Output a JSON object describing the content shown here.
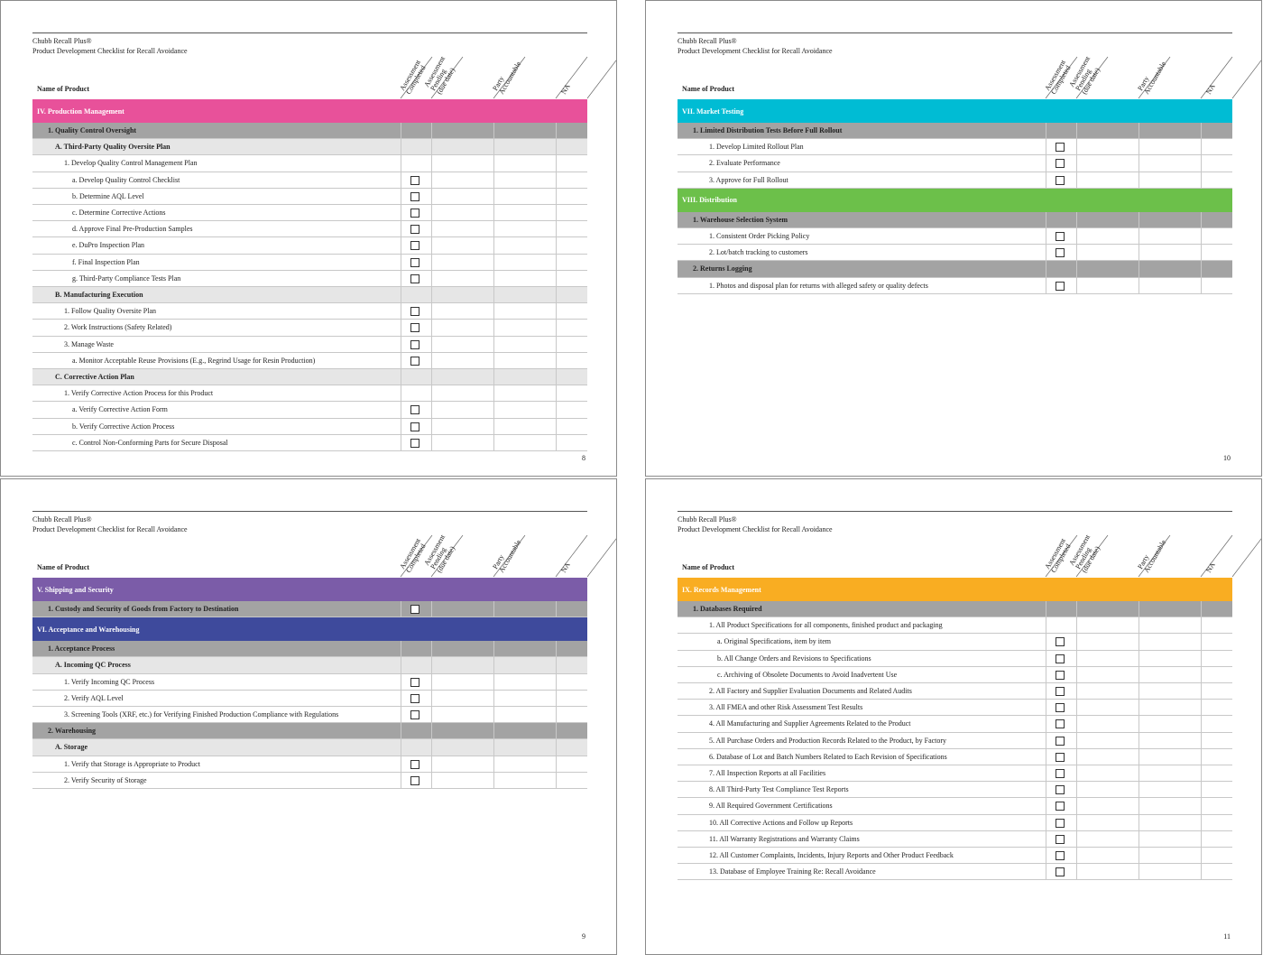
{
  "pages": [
    {
      "header_title": "Chubb Recall Plus®",
      "header_subtitle": "Product Development Checklist for Recall Avoidance",
      "name_label": "Name of Product",
      "columns": [
        [
          "Assessment",
          "Completed"
        ],
        [
          "Assessment",
          "Pending",
          "(due date)"
        ],
        [
          "Party",
          "Accountable"
        ],
        [
          "NA"
        ]
      ],
      "page_number": "8",
      "rows": [
        {
          "level": "section",
          "color": "#e8519a",
          "text": "IV.  Production Management"
        },
        {
          "level": "group",
          "text": "1. Quality Control Oversight"
        },
        {
          "level": "subgroup",
          "text": "A. Third-Party Quality Oversite Plan"
        },
        {
          "level": "item",
          "text": "1. Develop Quality Control Management Plan"
        },
        {
          "level": "subitem",
          "text": "a. Develop Quality Control Checklist",
          "checkbox": true
        },
        {
          "level": "subitem",
          "text": "b. Determine AQL Level",
          "checkbox": true
        },
        {
          "level": "subitem",
          "text": "c. Determine Corrective Actions",
          "checkbox": true
        },
        {
          "level": "subitem",
          "text": "d. Approve Final Pre-Production Samples",
          "checkbox": true
        },
        {
          "level": "subitem",
          "text": "e. DuPro Inspection Plan",
          "checkbox": true
        },
        {
          "level": "subitem",
          "text": "f. Final Inspection Plan",
          "checkbox": true
        },
        {
          "level": "subitem",
          "text": "g. Third-Party Compliance Tests Plan",
          "checkbox": true
        },
        {
          "level": "subgroup",
          "text": "B. Manufacturing Execution"
        },
        {
          "level": "item",
          "text": "1. Follow Quality Oversite Plan",
          "checkbox": true
        },
        {
          "level": "item",
          "text": "2. Work Instructions (Safety Related)",
          "checkbox": true
        },
        {
          "level": "item",
          "text": "3. Manage Waste",
          "checkbox": true
        },
        {
          "level": "subitem",
          "text": "a. Monitor Acceptable Reuse Provisions (E.g., Regrind Usage for Resin Production)",
          "checkbox": true
        },
        {
          "level": "subgroup",
          "text": "C. Corrective Action Plan"
        },
        {
          "level": "item",
          "text": "1. Verify Corrective Action Process for this Product"
        },
        {
          "level": "subitem",
          "text": "a. Verify Corrective Action Form",
          "checkbox": true
        },
        {
          "level": "subitem",
          "text": "b. Verify Corrective Action Process",
          "checkbox": true
        },
        {
          "level": "subitem",
          "text": "c. Control Non-Conforming Parts for Secure Disposal",
          "checkbox": true
        }
      ]
    },
    {
      "header_title": "Chubb Recall Plus®",
      "header_subtitle": "Product Development Checklist for Recall Avoidance",
      "name_label": "Name of Product",
      "columns": [
        [
          "Assessment",
          "Completed"
        ],
        [
          "Assessment",
          "Pending",
          "(due date)"
        ],
        [
          "Party",
          "Accountable"
        ],
        [
          "NA"
        ]
      ],
      "page_number": "10",
      "rows": [
        {
          "level": "section",
          "color": "#00bcd4",
          "text": "VII.  Market Testing"
        },
        {
          "level": "group",
          "text": "1. Limited Distribution Tests Before Full Rollout"
        },
        {
          "level": "item",
          "text": "1. Develop Limited Rollout Plan",
          "checkbox": true
        },
        {
          "level": "item",
          "text": "2. Evaluate Performance",
          "checkbox": true
        },
        {
          "level": "item",
          "text": "3. Approve for Full Rollout",
          "checkbox": true
        },
        {
          "level": "section",
          "color": "#6cc04a",
          "text": "VIII. Distribution"
        },
        {
          "level": "group",
          "text": "1. Warehouse Selection System"
        },
        {
          "level": "item",
          "text": "1. Consistent Order Picking Policy",
          "checkbox": true
        },
        {
          "level": "item",
          "text": "2. Lot/batch tracking to customers",
          "checkbox": true
        },
        {
          "level": "group",
          "text": "2. Returns Logging"
        },
        {
          "level": "item",
          "text": "1. Photos and disposal plan for returns with alleged safety or quality defects",
          "checkbox": true
        }
      ]
    },
    {
      "header_title": "Chubb Recall Plus®",
      "header_subtitle": "Product Development Checklist for Recall Avoidance",
      "name_label": "Name of Product",
      "columns": [
        [
          "Assessment",
          "Completed"
        ],
        [
          "Assessment",
          "Pending",
          "(due date)"
        ],
        [
          "Party",
          "Accountable"
        ],
        [
          "NA"
        ]
      ],
      "page_number": "9",
      "rows": [
        {
          "level": "section",
          "color": "#7b5ca8",
          "text": "V.  Shipping and Security"
        },
        {
          "level": "group",
          "text": "1. Custody and Security of Goods from Factory to Destination",
          "checkbox": true
        },
        {
          "level": "section",
          "color": "#3e4a9c",
          "text": "VI.  Acceptance and Warehousing"
        },
        {
          "level": "group",
          "text": "1. Acceptance Process"
        },
        {
          "level": "subgroup",
          "text": "A. Incoming QC Process"
        },
        {
          "level": "item",
          "text": "1. Verify Incoming QC Process",
          "checkbox": true
        },
        {
          "level": "item",
          "text": "2. Verify AQL Level",
          "checkbox": true
        },
        {
          "level": "item",
          "text": "3. Screening Tools (XRF, etc.) for Verifying Finished Production Compliance with Regulations",
          "checkbox": true
        },
        {
          "level": "group",
          "text": "2. Warehousing"
        },
        {
          "level": "subgroup",
          "text": "A. Storage"
        },
        {
          "level": "item",
          "text": "1. Verify that Storage is Appropriate to Product",
          "checkbox": true
        },
        {
          "level": "item",
          "text": "2. Verify Security of Storage",
          "checkbox": true
        }
      ]
    },
    {
      "header_title": "Chubb Recall Plus®",
      "header_subtitle": "Product Development Checklist for Recall Avoidance",
      "name_label": "Name of Product",
      "columns": [
        [
          "Assessment",
          "Completed"
        ],
        [
          "Assessment",
          "Pending",
          "(due date)"
        ],
        [
          "Party",
          "Accountable"
        ],
        [
          "NA"
        ]
      ],
      "page_number": "11",
      "rows": [
        {
          "level": "section",
          "color": "#f9ad22",
          "text": "IX.  Records Management"
        },
        {
          "level": "group",
          "text": "1. Databases Required"
        },
        {
          "level": "item",
          "text": "1. All Product Specifications for all components, finished product and packaging"
        },
        {
          "level": "subitem",
          "text": "a. Original Specifications, item by item",
          "checkbox": true
        },
        {
          "level": "subitem",
          "text": "b. All Change Orders and Revisions to Specifications",
          "checkbox": true
        },
        {
          "level": "subitem",
          "text": "c. Archiving of Obsolete Documents to Avoid Inadvertent Use",
          "checkbox": true
        },
        {
          "level": "item",
          "text": "2. All Factory and Supplier Evaluation Documents and Related Audits",
          "checkbox": true
        },
        {
          "level": "item",
          "text": "3. All FMEA and other Risk Assessment Test Results",
          "checkbox": true
        },
        {
          "level": "item",
          "text": "4. All Manufacturing and Supplier Agreements Related to the Product",
          "checkbox": true
        },
        {
          "level": "item",
          "text": "5. All Purchase Orders and Production Records Related to the Product, by Factory",
          "checkbox": true
        },
        {
          "level": "item",
          "text": "6. Database of Lot and Batch Numbers Related to Each Revision of Specifications",
          "checkbox": true
        },
        {
          "level": "item",
          "text": "7. All Inspection Reports at all Facilities",
          "checkbox": true
        },
        {
          "level": "item",
          "text": "8. All Third-Party Test Compliance Test Reports",
          "checkbox": true
        },
        {
          "level": "item",
          "text": "9. All Required Government Certifications",
          "checkbox": true
        },
        {
          "level": "item",
          "text": "10. All Corrective Actions and Follow up Reports",
          "checkbox": true
        },
        {
          "level": "item",
          "text": "11. All Warranty Registrations and Warranty Claims",
          "checkbox": true
        },
        {
          "level": "item",
          "text": "12. All Customer Complaints, Incidents, Injury Reports and Other Product Feedback",
          "checkbox": true
        },
        {
          "level": "item",
          "text": "13. Database of Employee Training Re: Recall Avoidance",
          "checkbox": true
        }
      ]
    }
  ]
}
